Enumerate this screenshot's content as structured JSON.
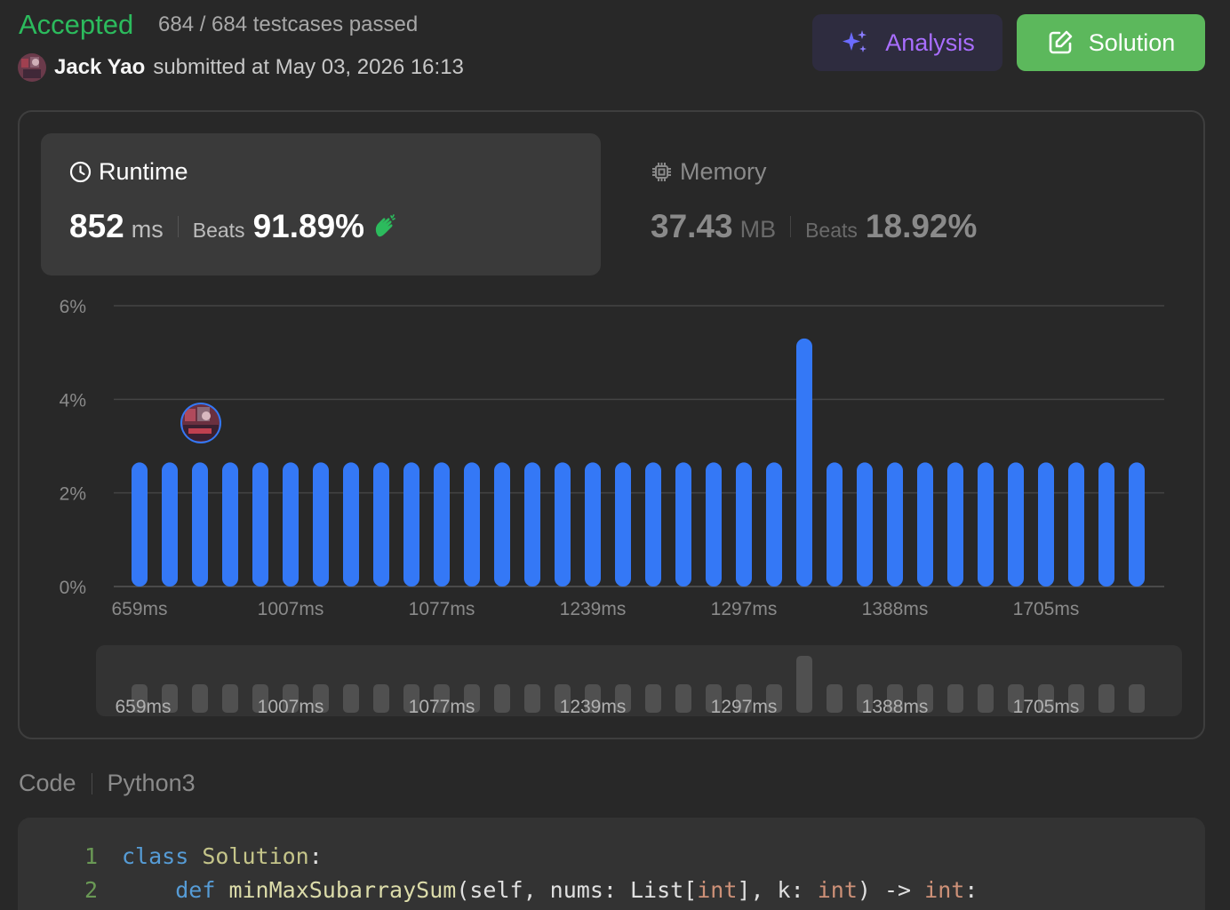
{
  "header": {
    "status": "Accepted",
    "testcases": "684 / 684 testcases passed",
    "username": "Jack Yao",
    "submitted_text": "submitted at May 03, 2026 16:13",
    "analysis_label": "Analysis",
    "solution_label": "Solution"
  },
  "runtime": {
    "label": "Runtime",
    "value": "852",
    "unit": "ms",
    "beats_word": "Beats",
    "beats": "91.89%"
  },
  "memory": {
    "label": "Memory",
    "value": "37.43",
    "unit": "MB",
    "beats_word": "Beats",
    "beats": "18.92%"
  },
  "colors": {
    "accepted": "#2cbb5d",
    "bar": "#3478f6",
    "analysis": "#a96eff",
    "solution_bg": "#5cb85c"
  },
  "chart_data": {
    "type": "bar",
    "title": "",
    "xlabel": "",
    "ylabel": "",
    "ylim": [
      0,
      6
    ],
    "y_ticks": [
      "0%",
      "2%",
      "4%",
      "6%"
    ],
    "y_tick_values": [
      0,
      2,
      4,
      6
    ],
    "x_tick_labels": [
      "659ms",
      "1007ms",
      "1077ms",
      "1239ms",
      "1297ms",
      "1388ms",
      "1705ms"
    ],
    "x_tick_bar_index": [
      0,
      5,
      10,
      15,
      20,
      25,
      30
    ],
    "values": [
      2.65,
      2.65,
      2.65,
      2.65,
      2.65,
      2.65,
      2.65,
      2.65,
      2.65,
      2.65,
      2.65,
      2.65,
      2.65,
      2.65,
      2.65,
      2.65,
      2.65,
      2.65,
      2.65,
      2.65,
      2.65,
      2.65,
      5.3,
      2.65,
      2.65,
      2.65,
      2.65,
      2.65,
      2.65,
      2.65,
      2.65,
      2.65,
      2.65,
      2.65
    ],
    "user_bar_index": 2,
    "grid": true
  },
  "code": {
    "label": "Code",
    "language": "Python3",
    "lines": [
      {
        "num": "1",
        "t1": "class",
        "t2": " ",
        "t3": "Solution",
        "t4": ":"
      },
      {
        "num": "2",
        "t1": "    ",
        "t2": "def",
        "t3": " ",
        "t4": "minMaxSubarraySum",
        "t5": "(self, nums: List[",
        "t6": "int",
        "t7": "], k: ",
        "t8": "int",
        "t9": ") -> ",
        "t10": "int",
        "t11": ":"
      }
    ]
  }
}
